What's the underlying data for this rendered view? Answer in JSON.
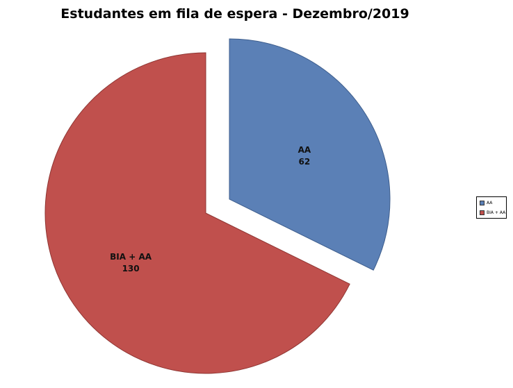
{
  "chart_data": {
    "type": "pie",
    "title": "Estudantes em fila de espera - Dezembro/2019",
    "slices": [
      {
        "label": "AA",
        "value": 62,
        "color": "#5b80b6",
        "exploded": true
      },
      {
        "label": "BIA + AA",
        "value": 130,
        "color": "#c0504d",
        "exploded": false
      }
    ],
    "legend": {
      "position": "right",
      "entries": [
        "AA",
        "BIA + AA"
      ]
    },
    "data_labels": [
      {
        "name": "AA",
        "value": "62"
      },
      {
        "name": "BIA + AA",
        "value": "130"
      }
    ]
  }
}
